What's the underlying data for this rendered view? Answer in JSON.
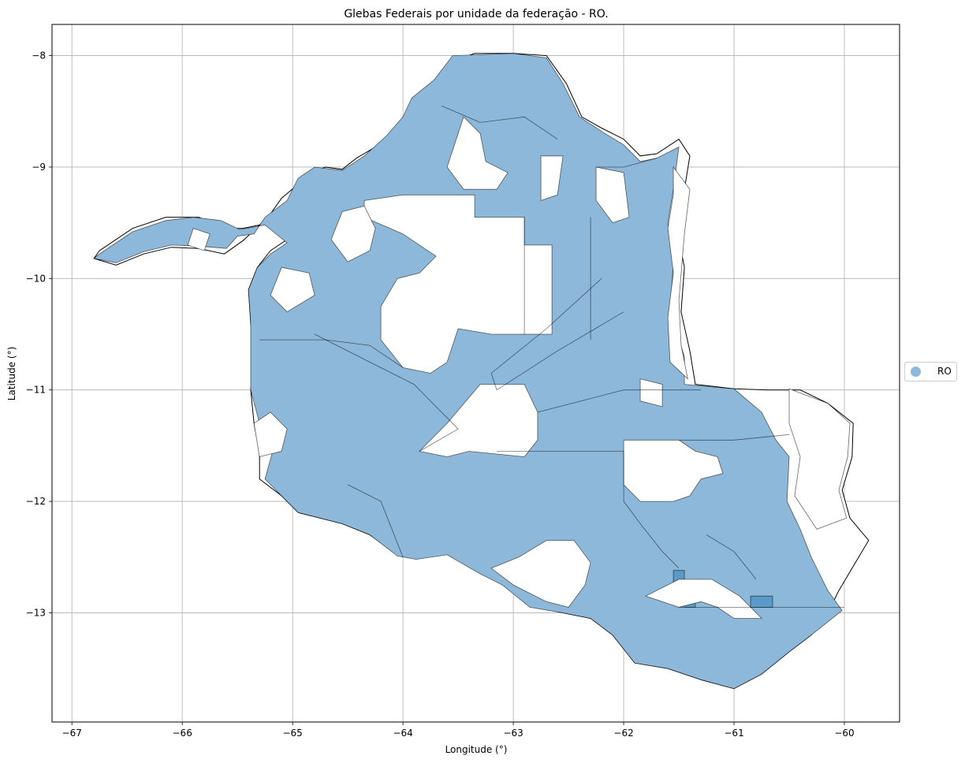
{
  "chart_data": {
    "type": "map",
    "title": "Glebas Federais por unidade da federação - RO.",
    "xlabel": "Longitude (°)",
    "ylabel": "Latitude (°)",
    "xlim": [
      -67.18,
      -59.5
    ],
    "ylim": [
      -13.98,
      -7.72
    ],
    "xticks": [
      -67,
      -66,
      -65,
      -64,
      -63,
      -62,
      -61,
      -60
    ],
    "yticks": [
      -8,
      -9,
      -10,
      -11,
      -12,
      -13
    ],
    "xtick_labels": [
      "−67",
      "−66",
      "−65",
      "−64",
      "−63",
      "−62",
      "−61",
      "−60"
    ],
    "ytick_labels": [
      "−8",
      "−9",
      "−10",
      "−11",
      "−12",
      "−13"
    ],
    "grid": true,
    "legend_position": "right-center",
    "series": [
      {
        "name": "RO",
        "color": "#8db8d9"
      }
    ]
  },
  "legend": {
    "items": [
      {
        "label": "RO",
        "color": "#8db8d9"
      }
    ]
  },
  "colors": {
    "fill": "#8db8d9",
    "fill_dark": "#5a9ac9",
    "edge": "#000000",
    "grid": "#b0b0b0"
  }
}
